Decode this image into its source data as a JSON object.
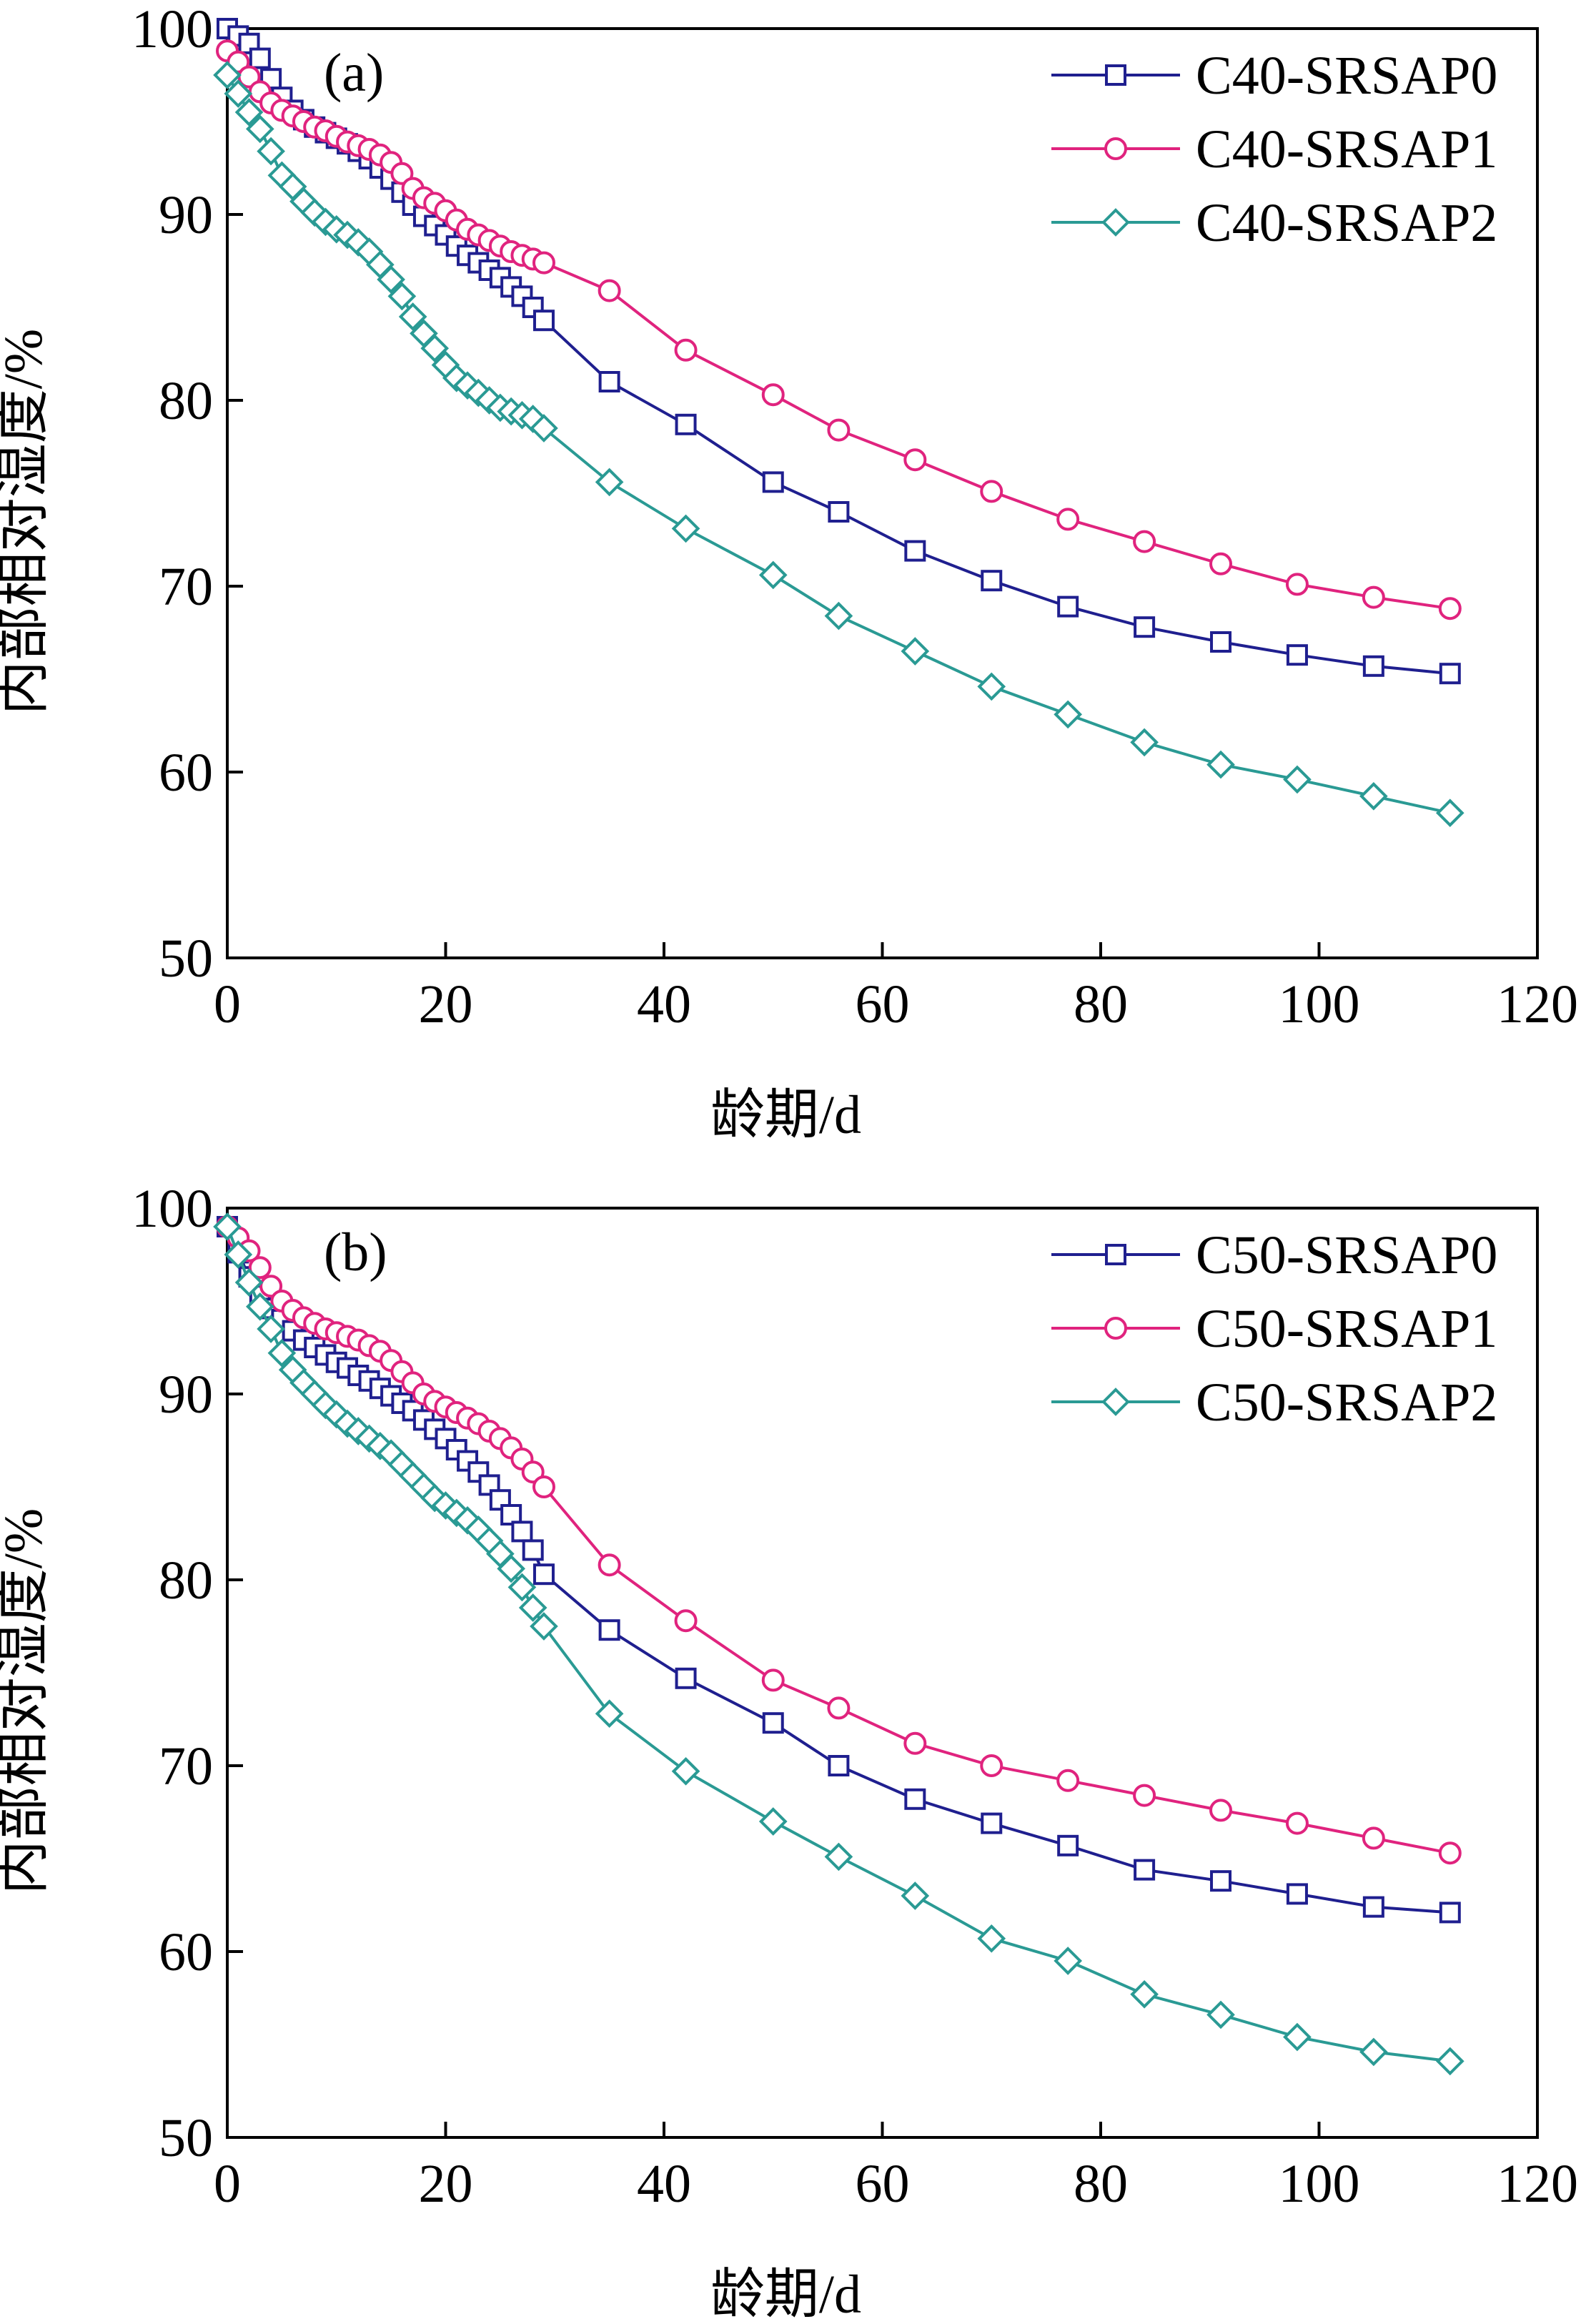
{
  "figure": {
    "background": "#ffffff"
  },
  "chart_data": [
    {
      "type": "line",
      "panel_label": "(a)",
      "xlabel": "龄期/d",
      "ylabel": "内部相对湿度/%",
      "xlim": [
        0,
        120
      ],
      "ylim": [
        50,
        100
      ],
      "xticks": [
        0,
        20,
        40,
        60,
        80,
        100,
        120
      ],
      "yticks": [
        50,
        60,
        70,
        80,
        90,
        100
      ],
      "legend_position": "top-right",
      "series": [
        {
          "name": "C40-SRSAP0",
          "color": "#1f1f8f",
          "marker": "square",
          "x": [
            0,
            1,
            2,
            3,
            4,
            5,
            6,
            7,
            8,
            9,
            10,
            11,
            12,
            13,
            14,
            15,
            16,
            17,
            18,
            19,
            20,
            21,
            22,
            23,
            24,
            25,
            26,
            27,
            28,
            29,
            35,
            42,
            50,
            56,
            63,
            70,
            77,
            84,
            91,
            98,
            105,
            112
          ],
          "y": [
            100,
            99.6,
            99.2,
            98.4,
            97.3,
            96.3,
            95.6,
            95.1,
            94.7,
            94.4,
            94.1,
            93.8,
            93.4,
            93.0,
            92.5,
            91.9,
            91.2,
            90.5,
            89.9,
            89.4,
            88.9,
            88.3,
            87.8,
            87.4,
            87.0,
            86.6,
            86.1,
            85.6,
            85.0,
            84.3,
            81.0,
            78.7,
            75.6,
            74.0,
            71.9,
            70.3,
            68.9,
            67.8,
            67.0,
            66.3,
            65.7,
            65.3
          ]
        },
        {
          "name": "C40-SRSAP1",
          "color": "#e0237e",
          "marker": "circle",
          "x": [
            0,
            1,
            2,
            3,
            4,
            5,
            6,
            7,
            8,
            9,
            10,
            11,
            12,
            13,
            14,
            15,
            16,
            17,
            18,
            19,
            20,
            21,
            22,
            23,
            24,
            25,
            26,
            27,
            28,
            29,
            35,
            42,
            50,
            56,
            63,
            70,
            77,
            84,
            91,
            98,
            105,
            112
          ],
          "y": [
            98.8,
            98.2,
            97.4,
            96.6,
            96.0,
            95.6,
            95.3,
            95.0,
            94.7,
            94.5,
            94.2,
            93.9,
            93.7,
            93.5,
            93.2,
            92.8,
            92.2,
            91.4,
            90.9,
            90.6,
            90.2,
            89.7,
            89.2,
            88.9,
            88.6,
            88.3,
            88.0,
            87.8,
            87.6,
            87.4,
            85.9,
            82.7,
            80.3,
            78.4,
            76.8,
            75.1,
            73.6,
            72.4,
            71.2,
            70.1,
            69.4,
            68.8
          ]
        },
        {
          "name": "C40-SRSAP2",
          "color": "#2a9a94",
          "marker": "diamond",
          "x": [
            0,
            1,
            2,
            3,
            4,
            5,
            6,
            7,
            8,
            9,
            10,
            11,
            12,
            13,
            14,
            15,
            16,
            17,
            18,
            19,
            20,
            21,
            22,
            23,
            24,
            25,
            26,
            27,
            28,
            29,
            35,
            42,
            50,
            56,
            63,
            70,
            77,
            84,
            91,
            98,
            105,
            112
          ],
          "y": [
            97.5,
            96.5,
            95.5,
            94.6,
            93.4,
            92.1,
            91.5,
            90.7,
            90.1,
            89.6,
            89.2,
            88.9,
            88.5,
            88.0,
            87.3,
            86.5,
            85.6,
            84.5,
            83.6,
            82.8,
            81.9,
            81.2,
            80.8,
            80.4,
            80.0,
            79.6,
            79.4,
            79.2,
            79.0,
            78.5,
            75.6,
            73.1,
            70.6,
            68.4,
            66.5,
            64.6,
            63.1,
            61.6,
            60.4,
            59.6,
            58.7,
            57.8
          ]
        }
      ]
    },
    {
      "type": "line",
      "panel_label": "(b)",
      "xlabel": "龄期/d",
      "ylabel": "内部相对湿度/%",
      "xlim": [
        0,
        120
      ],
      "ylim": [
        50,
        100
      ],
      "xticks": [
        0,
        20,
        40,
        60,
        80,
        100,
        120
      ],
      "yticks": [
        50,
        60,
        70,
        80,
        90,
        100
      ],
      "legend_position": "top-right",
      "series": [
        {
          "name": "C50-SRSAP0",
          "color": "#1f1f8f",
          "marker": "square",
          "x": [
            0,
            1,
            2,
            3,
            4,
            5,
            6,
            7,
            8,
            9,
            10,
            11,
            12,
            13,
            14,
            15,
            16,
            17,
            18,
            19,
            20,
            21,
            22,
            23,
            24,
            25,
            26,
            27,
            28,
            29,
            35,
            42,
            50,
            56,
            63,
            70,
            77,
            84,
            91,
            98,
            105,
            112
          ],
          "y": [
            99.0,
            97.6,
            96.3,
            95.3,
            94.6,
            94.0,
            93.4,
            92.9,
            92.5,
            92.1,
            91.7,
            91.4,
            91.0,
            90.7,
            90.3,
            89.9,
            89.5,
            89.1,
            88.6,
            88.1,
            87.6,
            87.0,
            86.4,
            85.8,
            85.1,
            84.3,
            83.5,
            82.6,
            81.6,
            80.3,
            77.3,
            74.7,
            72.3,
            70.0,
            68.2,
            66.9,
            65.7,
            64.4,
            63.8,
            63.1,
            62.4,
            62.1
          ]
        },
        {
          "name": "C50-SRSAP1",
          "color": "#e0237e",
          "marker": "circle",
          "x": [
            0,
            1,
            2,
            3,
            4,
            5,
            6,
            7,
            8,
            9,
            10,
            11,
            12,
            13,
            14,
            15,
            16,
            17,
            18,
            19,
            20,
            21,
            22,
            23,
            24,
            25,
            26,
            27,
            28,
            29,
            35,
            42,
            50,
            56,
            63,
            70,
            77,
            84,
            91,
            98,
            105,
            112
          ],
          "y": [
            99.0,
            98.4,
            97.7,
            96.8,
            95.8,
            95.0,
            94.5,
            94.1,
            93.8,
            93.5,
            93.3,
            93.1,
            92.9,
            92.6,
            92.3,
            91.8,
            91.2,
            90.6,
            90.0,
            89.6,
            89.3,
            89.0,
            88.7,
            88.4,
            88.0,
            87.6,
            87.1,
            86.5,
            85.8,
            85.0,
            80.8,
            77.8,
            74.6,
            73.1,
            71.2,
            70.0,
            69.2,
            68.4,
            67.6,
            66.9,
            66.1,
            65.3
          ]
        },
        {
          "name": "C50-SRSAP2",
          "color": "#2a9a94",
          "marker": "diamond",
          "x": [
            0,
            1,
            2,
            3,
            4,
            5,
            6,
            7,
            8,
            9,
            10,
            11,
            12,
            13,
            14,
            15,
            16,
            17,
            18,
            19,
            20,
            21,
            22,
            23,
            24,
            25,
            26,
            27,
            28,
            29,
            35,
            42,
            50,
            56,
            63,
            70,
            77,
            84,
            91,
            98,
            105,
            112
          ],
          "y": [
            99.0,
            97.5,
            96.0,
            94.7,
            93.5,
            92.2,
            91.3,
            90.6,
            90.0,
            89.4,
            88.9,
            88.4,
            88.0,
            87.6,
            87.2,
            86.8,
            86.2,
            85.6,
            85.0,
            84.4,
            84.0,
            83.6,
            83.2,
            82.7,
            82.1,
            81.4,
            80.6,
            79.6,
            78.5,
            77.5,
            72.8,
            69.7,
            67.0,
            65.1,
            63.0,
            60.7,
            59.5,
            57.7,
            56.6,
            55.4,
            54.6,
            54.1
          ]
        }
      ]
    }
  ]
}
